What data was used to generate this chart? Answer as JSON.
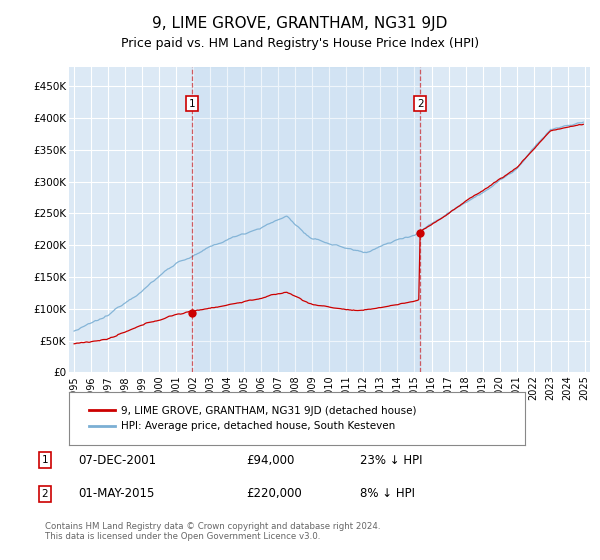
{
  "title": "9, LIME GROVE, GRANTHAM, NG31 9JD",
  "subtitle": "Price paid vs. HM Land Registry's House Price Index (HPI)",
  "title_fontsize": 11,
  "subtitle_fontsize": 9,
  "bg_color": "#dce9f5",
  "grid_color": "#ffffff",
  "red_color": "#cc0000",
  "blue_color": "#7bafd4",
  "marker1_x": 2001.92,
  "marker1_y": 94000,
  "marker2_x": 2015.33,
  "marker2_y": 220000,
  "legend_label_red": "9, LIME GROVE, GRANTHAM, NG31 9JD (detached house)",
  "legend_label_blue": "HPI: Average price, detached house, South Kesteven",
  "marker1_date": "07-DEC-2001",
  "marker1_price": "£94,000",
  "marker1_hpi": "23% ↓ HPI",
  "marker2_date": "01-MAY-2015",
  "marker2_price": "£220,000",
  "marker2_hpi": "8% ↓ HPI",
  "footer": "Contains HM Land Registry data © Crown copyright and database right 2024.\nThis data is licensed under the Open Government Licence v3.0.",
  "ylim": [
    0,
    480000
  ],
  "yticks": [
    0,
    50000,
    100000,
    150000,
    200000,
    250000,
    300000,
    350000,
    400000,
    450000
  ],
  "ytick_labels": [
    "£0",
    "£50K",
    "£100K",
    "£150K",
    "£200K",
    "£250K",
    "£300K",
    "£350K",
    "£400K",
    "£450K"
  ],
  "xlim_start": 1994.7,
  "xlim_end": 2025.3,
  "xticks": [
    1995,
    1996,
    1997,
    1998,
    1999,
    2000,
    2001,
    2002,
    2003,
    2004,
    2005,
    2006,
    2007,
    2008,
    2009,
    2010,
    2011,
    2012,
    2013,
    2014,
    2015,
    2016,
    2017,
    2018,
    2019,
    2020,
    2021,
    2022,
    2023,
    2024,
    2025
  ]
}
